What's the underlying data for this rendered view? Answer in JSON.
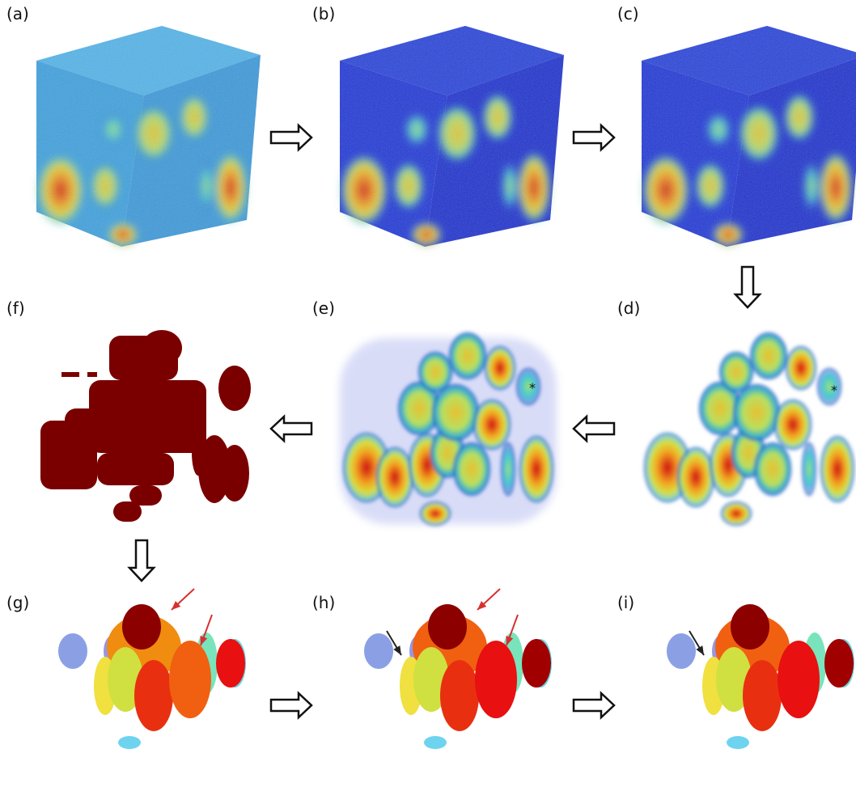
{
  "panels": [
    {
      "label": "(a)"
    },
    {
      "label": "(b)"
    },
    {
      "label": "(c)"
    },
    {
      "label": "(d)",
      "annotation": "*"
    },
    {
      "label": "(e)",
      "annotation": "*"
    },
    {
      "label": "(f)"
    },
    {
      "label": "(g)"
    },
    {
      "label": "(h)"
    },
    {
      "label": "(i)"
    }
  ]
}
